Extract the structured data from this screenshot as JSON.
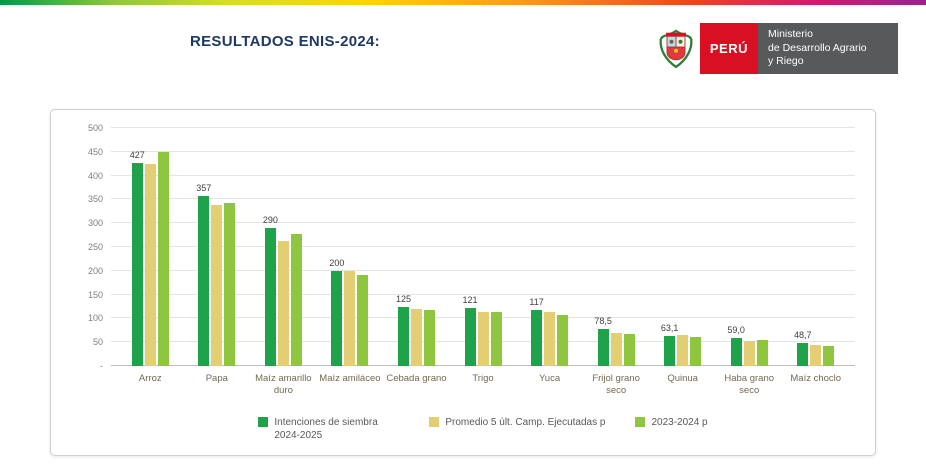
{
  "header": {
    "title": "RESULTADOS ENIS-2024:",
    "logo": {
      "country_label": "PERÚ",
      "ministry_lines": [
        "Ministerio",
        "de Desarrollo Agrario",
        "y Riego"
      ]
    }
  },
  "colors": {
    "title_blue": "#1f3864",
    "peru_red": "#d91023",
    "ministry_gray": "#58595b",
    "series1_green": "#1ea24a",
    "series2_khaki": "#e3ce74",
    "series3_light_green": "#8ec63f"
  },
  "chart_data": {
    "type": "bar",
    "title": "RESULTADOS ENIS-2024",
    "categories": [
      "Arroz",
      "Papa",
      "Maíz amarillo duro",
      "Maíz amiláceo",
      "Cebada grano",
      "Trigo",
      "Yuca",
      "Frijol grano seco",
      "Quinua",
      "Haba grano seco",
      "Maíz choclo"
    ],
    "series": [
      {
        "name": "Intenciones de siembra 2024-2025",
        "color": "#1ea24a",
        "values": [
          427,
          357,
          290,
          200,
          125,
          121,
          117,
          78.5,
          63.1,
          59.0,
          48.7
        ]
      },
      {
        "name": "Promedio 5 últ. Camp. Ejecutadas p",
        "color": "#e3ce74",
        "values": [
          425,
          338,
          262,
          200,
          120,
          114,
          113,
          70,
          65,
          53,
          44
        ]
      },
      {
        "name": "2023-2024 p",
        "color": "#8ec63f",
        "values": [
          450,
          343,
          277,
          192,
          117,
          114,
          108,
          67,
          62,
          55,
          43
        ]
      }
    ],
    "value_labels": [
      "427",
      "357",
      "290",
      "200",
      "125",
      "121",
      "117",
      "78,5",
      "63,1",
      "59,0",
      "48,7"
    ],
    "ylim": [
      0,
      500
    ],
    "yticks": [
      "500",
      "450",
      "400",
      "350",
      "300",
      "250",
      "200",
      "150",
      "100",
      "50",
      "-"
    ],
    "grid": true,
    "legend_position": "bottom"
  }
}
